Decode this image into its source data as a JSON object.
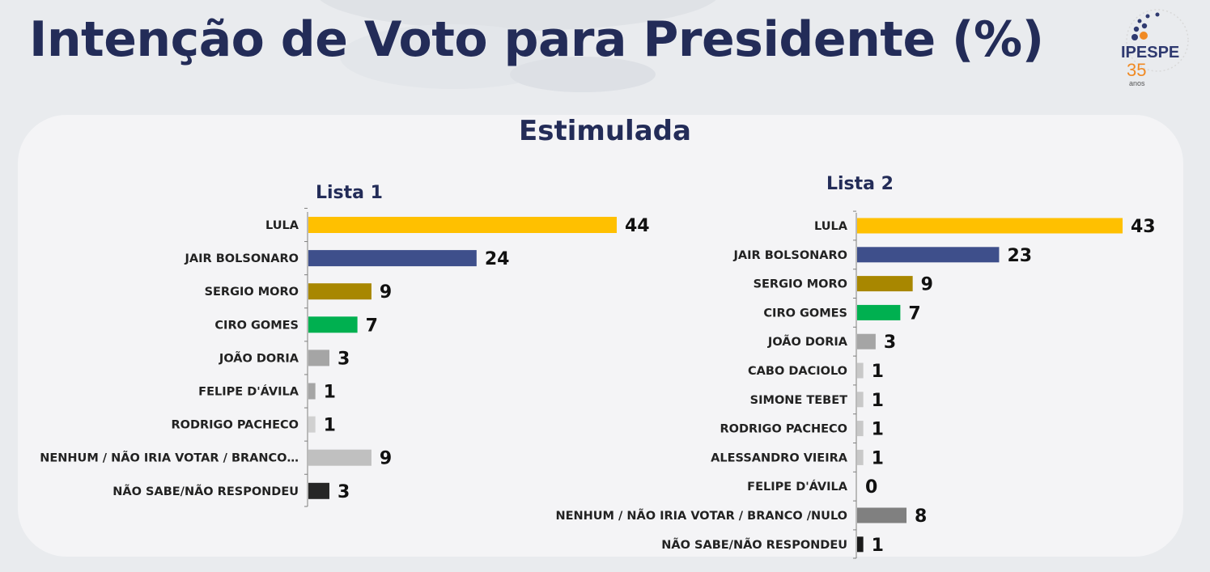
{
  "header": {
    "title": "Intenção de Voto para Presidente (%)",
    "logo": {
      "name": "IPESPE",
      "number": "35",
      "suffix": "anos"
    }
  },
  "subtitle": "Estimulada",
  "chart_data": [
    {
      "type": "bar",
      "orientation": "horizontal",
      "title": "Lista 1",
      "categories": [
        "LULA",
        "JAIR BOLSONARO",
        "SERGIO MORO",
        "CIRO GOMES",
        "JOÃO DORIA",
        "FELIPE D'ÁVILA",
        "RODRIGO PACHECO",
        "NENHUM / NÃO IRIA VOTAR / BRANCO…",
        "NÃO SABE/NÃO RESPONDEU"
      ],
      "values": [
        44,
        24,
        9,
        7,
        3,
        1,
        1,
        9,
        3
      ],
      "colors": [
        "#ffc000",
        "#3e4f8b",
        "#a88700",
        "#00b050",
        "#a5a5a5",
        "#a5a5a5",
        "#d0d0d0",
        "#c0c0c0",
        "#262626"
      ],
      "xlabel": "",
      "ylabel": "",
      "xlim": [
        0,
        44
      ],
      "grid": false,
      "legend": "none"
    },
    {
      "type": "bar",
      "orientation": "horizontal",
      "title": "Lista 2",
      "categories": [
        "LULA",
        "JAIR BOLSONARO",
        "SERGIO MORO",
        "CIRO GOMES",
        "JOÃO DORIA",
        "CABO DACIOLO",
        "SIMONE TEBET",
        "RODRIGO PACHECO",
        "ALESSANDRO VIEIRA",
        "FELIPE D'ÁVILA",
        "NENHUM / NÃO IRIA VOTAR / BRANCO /NULO",
        "NÃO SABE/NÃO RESPONDEU"
      ],
      "values": [
        43,
        23,
        9,
        7,
        3,
        1,
        1,
        1,
        1,
        0,
        8,
        1
      ],
      "colors": [
        "#ffc000",
        "#3e4f8b",
        "#a88700",
        "#00b050",
        "#a5a5a5",
        "#c8c8c8",
        "#c8c8c8",
        "#c8c8c8",
        "#c8c8c8",
        "#c8c8c8",
        "#808080",
        "#1a1a1a"
      ],
      "xlabel": "",
      "ylabel": "",
      "xlim": [
        0,
        43
      ],
      "grid": false,
      "legend": "none"
    }
  ]
}
